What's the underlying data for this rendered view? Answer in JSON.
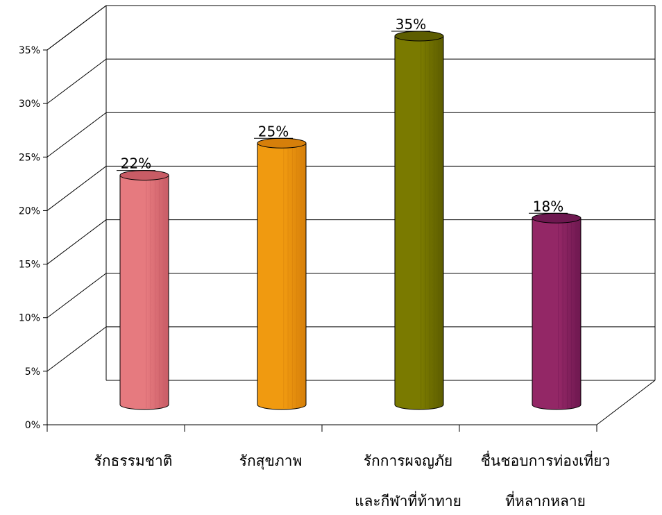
{
  "chart_data": {
    "type": "bar",
    "title": "",
    "xlabel": "",
    "ylabel": "",
    "categories": [
      [
        "รักธรรมชาติ"
      ],
      [
        "รักสุขภาพ"
      ],
      [
        "รักการผจญภัย",
        "และกีฬาที่ท้าทาย"
      ],
      [
        "ชื่นชอบการท่องเที่ยว",
        "ที่หลากหลาย"
      ]
    ],
    "values": [
      22,
      25,
      35,
      18
    ],
    "value_labels": [
      "22%",
      "25%",
      "35%",
      "18%"
    ],
    "y_ticks": [
      "0%",
      "5%",
      "10%",
      "15%",
      "20%",
      "25%",
      "30%",
      "35%"
    ],
    "ylim": [
      0,
      35
    ],
    "grid": true,
    "legend": "none",
    "colors": [
      "#e67a7f",
      "#f09a10",
      "#7a7a00",
      "#932766"
    ],
    "top_colors": [
      "#c85c65",
      "#d67f0a",
      "#5d5d00",
      "#6e1850"
    ]
  }
}
